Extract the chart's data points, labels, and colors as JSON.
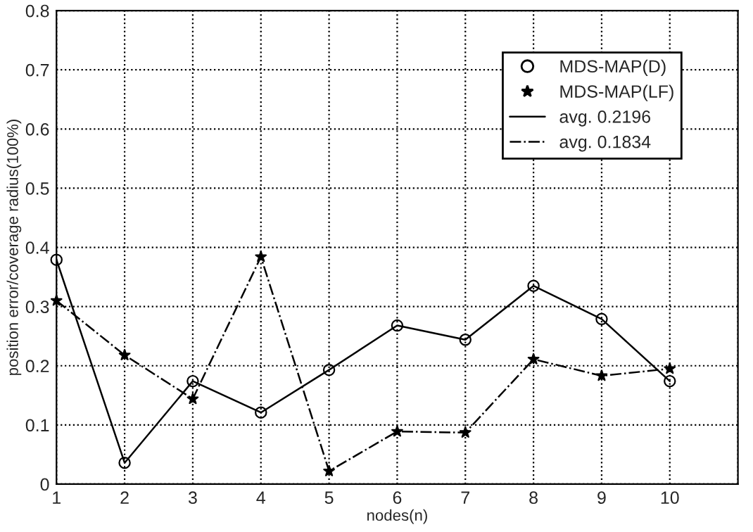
{
  "chart_data": {
    "type": "line",
    "xlabel": "nodes(n)",
    "ylabel": "position error/coverage radius(100%)",
    "x": [
      1,
      2,
      3,
      4,
      5,
      6,
      7,
      8,
      9,
      10
    ],
    "series": [
      {
        "name": "MDS-MAP(D)",
        "type": "scatter",
        "marker": "circle",
        "color": "#000000",
        "values": [
          0.379,
          0.036,
          0.174,
          0.121,
          0.193,
          0.268,
          0.244,
          0.335,
          0.279,
          0.174
        ]
      },
      {
        "name": "MDS-MAP(LF)",
        "type": "scatter",
        "marker": "star",
        "color": "#000000",
        "values": [
          0.31,
          0.218,
          0.144,
          0.384,
          0.022,
          0.089,
          0.087,
          0.211,
          0.183,
          0.195
        ]
      },
      {
        "name": "avg. 0.2196",
        "line_style": "solid",
        "color": "#000000",
        "values": [
          0.379,
          0.036,
          0.174,
          0.121,
          0.193,
          0.268,
          0.244,
          0.335,
          0.279,
          0.174
        ]
      },
      {
        "name": "avg. 0.1834",
        "line_style": "dashdot",
        "color": "#000000",
        "values": [
          0.31,
          0.218,
          0.144,
          0.384,
          0.022,
          0.089,
          0.087,
          0.211,
          0.183,
          0.195
        ]
      }
    ],
    "xlim": [
      1,
      11
    ],
    "xticks": [
      1,
      2,
      3,
      4,
      5,
      6,
      7,
      8,
      9,
      10,
      {
        "value": 11,
        "label": null
      }
    ],
    "ylim": [
      0,
      0.8
    ],
    "yticks": [
      0,
      0.1,
      0.2,
      0.3,
      0.4,
      0.5,
      0.6,
      0.7,
      0.8
    ],
    "grid": true,
    "legend": "top right"
  }
}
